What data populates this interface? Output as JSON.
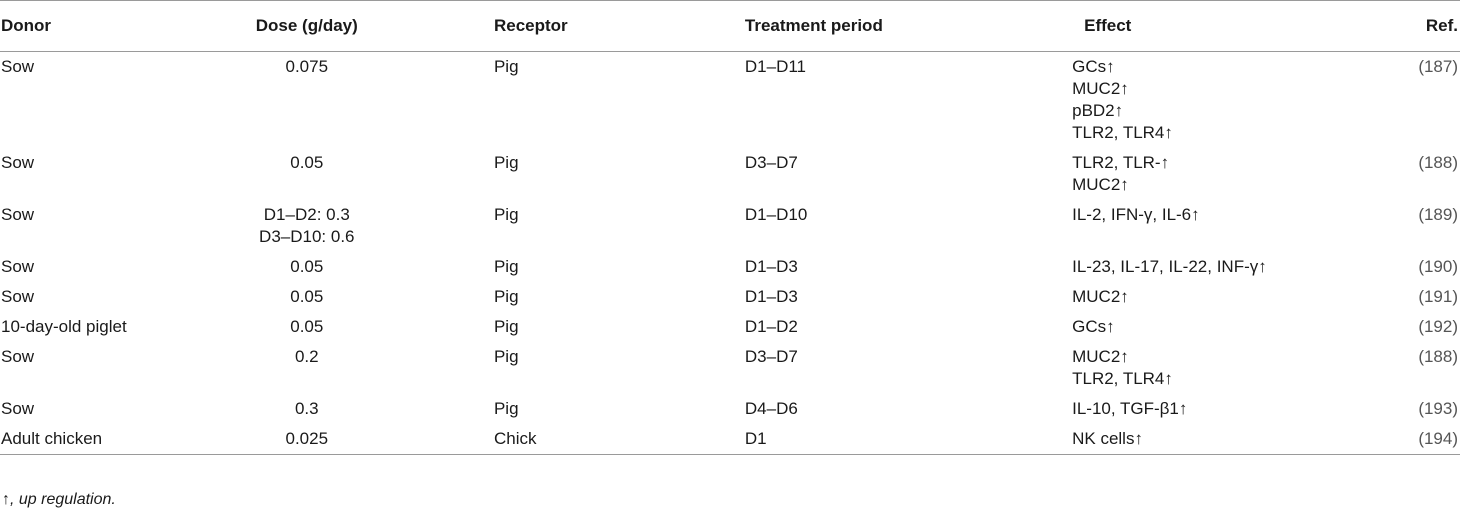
{
  "table": {
    "headers": {
      "donor": "Donor",
      "dose": "Dose (g/day)",
      "receptor": "Receptor",
      "period": "Treatment period",
      "effect": "Effect",
      "ref": "Ref."
    },
    "rows": [
      {
        "donor": "Sow",
        "dose": [
          "0.075"
        ],
        "receptor": "Pig",
        "period": "D1–D11",
        "effect": [
          "GCs↑",
          "MUC2↑",
          "pBD2↑",
          "TLR2, TLR4↑"
        ],
        "ref": "(187)"
      },
      {
        "donor": "Sow",
        "dose": [
          "0.05"
        ],
        "receptor": "Pig",
        "period": "D3–D7",
        "effect": [
          "TLR2, TLR-↑",
          "MUC2↑"
        ],
        "ref": "(188)"
      },
      {
        "donor": "Sow",
        "dose": [
          "D1–D2: 0.3",
          "D3–D10: 0.6"
        ],
        "receptor": "Pig",
        "period": "D1–D10",
        "effect": [
          "IL-2, IFN-γ, IL-6↑"
        ],
        "ref": "(189)"
      },
      {
        "donor": "Sow",
        "dose": [
          "0.05"
        ],
        "receptor": "Pig",
        "period": "D1–D3",
        "effect": [
          "IL-23, IL-17, IL-22, INF-γ↑"
        ],
        "ref": "(190)"
      },
      {
        "donor": "Sow",
        "dose": [
          "0.05"
        ],
        "receptor": "Pig",
        "period": "D1–D3",
        "effect": [
          "MUC2↑"
        ],
        "ref": "(191)"
      },
      {
        "donor": "10-day-old piglet",
        "dose": [
          "0.05"
        ],
        "receptor": "Pig",
        "period": "D1–D2",
        "effect": [
          "GCs↑"
        ],
        "ref": "(192)"
      },
      {
        "donor": "Sow",
        "dose": [
          "0.2"
        ],
        "receptor": "Pig",
        "period": "D3–D7",
        "effect": [
          "MUC2↑",
          "TLR2, TLR4↑"
        ],
        "ref": "(188)"
      },
      {
        "donor": "Sow",
        "dose": [
          "0.3"
        ],
        "receptor": "Pig",
        "period": "D4–D6",
        "effect": [
          "IL-10, TGF-β1↑"
        ],
        "ref": "(193)"
      },
      {
        "donor": "Adult chicken",
        "dose": [
          "0.025"
        ],
        "receptor": "Chick",
        "period": "D1",
        "effect": [
          "NK cells↑"
        ],
        "ref": "(194)"
      }
    ]
  },
  "footnote": "↑, up regulation."
}
